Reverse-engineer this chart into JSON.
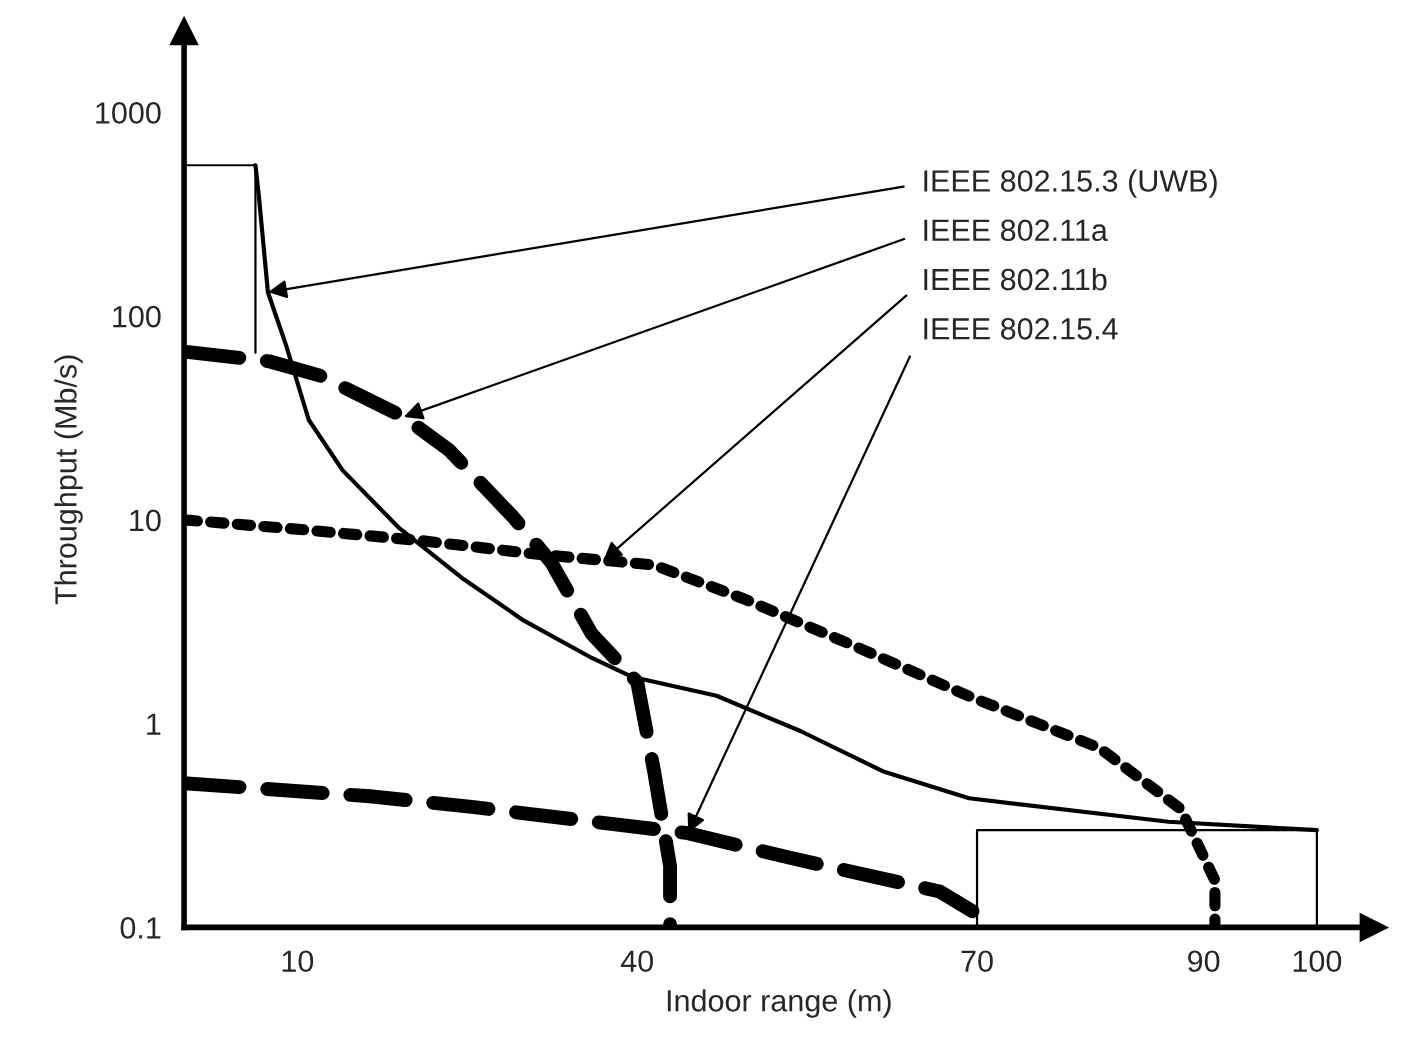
{
  "chart_data": {
    "type": "line",
    "xlabel": "Indoor range (m)",
    "ylabel": "Throughput (Mb/s)",
    "log": "y",
    "xlim": [
      0,
      105
    ],
    "ylim": [
      0.1,
      2500
    ],
    "xticks": [
      10,
      40,
      70,
      90,
      100
    ],
    "yticks": [
      0.1,
      1,
      10,
      100,
      1000
    ],
    "grid": false,
    "legend": false,
    "series": [
      {
        "color": "#000000",
        "line_style": "solid",
        "x": [
          6.3,
          6.6,
          7.4,
          9.0,
          11,
          14,
          19,
          24.5,
          30,
          36,
          39.5,
          47,
          54.4,
          61.8,
          69.3,
          86.9,
          100
        ],
        "values": [
          550,
          390,
          131,
          72,
          31,
          17.5,
          9.1,
          5.2,
          3.2,
          2.1,
          1.7,
          1.37,
          0.92,
          0.58,
          0.43,
          0.33,
          0.3
        ]
      },
      {
        "color": "#000000",
        "line_style": "dashed",
        "x": [
          0,
          7.5,
          12,
          19.4,
          23.4,
          29,
          32.4,
          36,
          40,
          41.5,
          42.9,
          42.9
        ],
        "values": [
          67,
          60,
          51,
          32,
          22,
          10.4,
          6.2,
          2.75,
          1.6,
          0.58,
          0.2,
          0.1
        ]
      },
      {
        "color": "#000000",
        "line_style": "dotted",
        "x": [
          0,
          11,
          21,
          31,
          41.5,
          49.4,
          59.2,
          69.2,
          80.8,
          88,
          91,
          91
        ],
        "values": [
          10,
          8.9,
          7.9,
          6.8,
          6.0,
          4.1,
          2.4,
          1.37,
          0.76,
          0.38,
          0.17,
          0.1
        ]
      },
      {
        "color": "#000000",
        "line_style": "dashed",
        "x": [
          0,
          16.4,
          25.4,
          44.5,
          53.4,
          66.7,
          69.6
        ],
        "values": [
          0.51,
          0.44,
          0.39,
          0.29,
          0.22,
          0.15,
          0.12
        ]
      },
      {
        "color": "#000000",
        "line_style": "solid",
        "x": [
          0,
          6.3,
          6.3
        ],
        "values": [
          550,
          550,
          66
        ]
      },
      {
        "color": "#000000",
        "line_style": "solid",
        "x": [
          70,
          70,
          100,
          100
        ],
        "values": [
          0.1,
          0.3,
          0.3,
          0.1
        ]
      }
    ],
    "annotations": [
      {
        "text": "IEEE 802.15.3 (UWB)",
        "x": 7.4,
        "y": 131
      },
      {
        "text": "IEEE 802.11a",
        "x": 19.4,
        "y": 32
      },
      {
        "text": "IEEE 802.11b",
        "x": 37,
        "y": 6.3
      },
      {
        "text": "IEEE 802.15.4",
        "x": 44.5,
        "y": 0.29
      }
    ]
  }
}
